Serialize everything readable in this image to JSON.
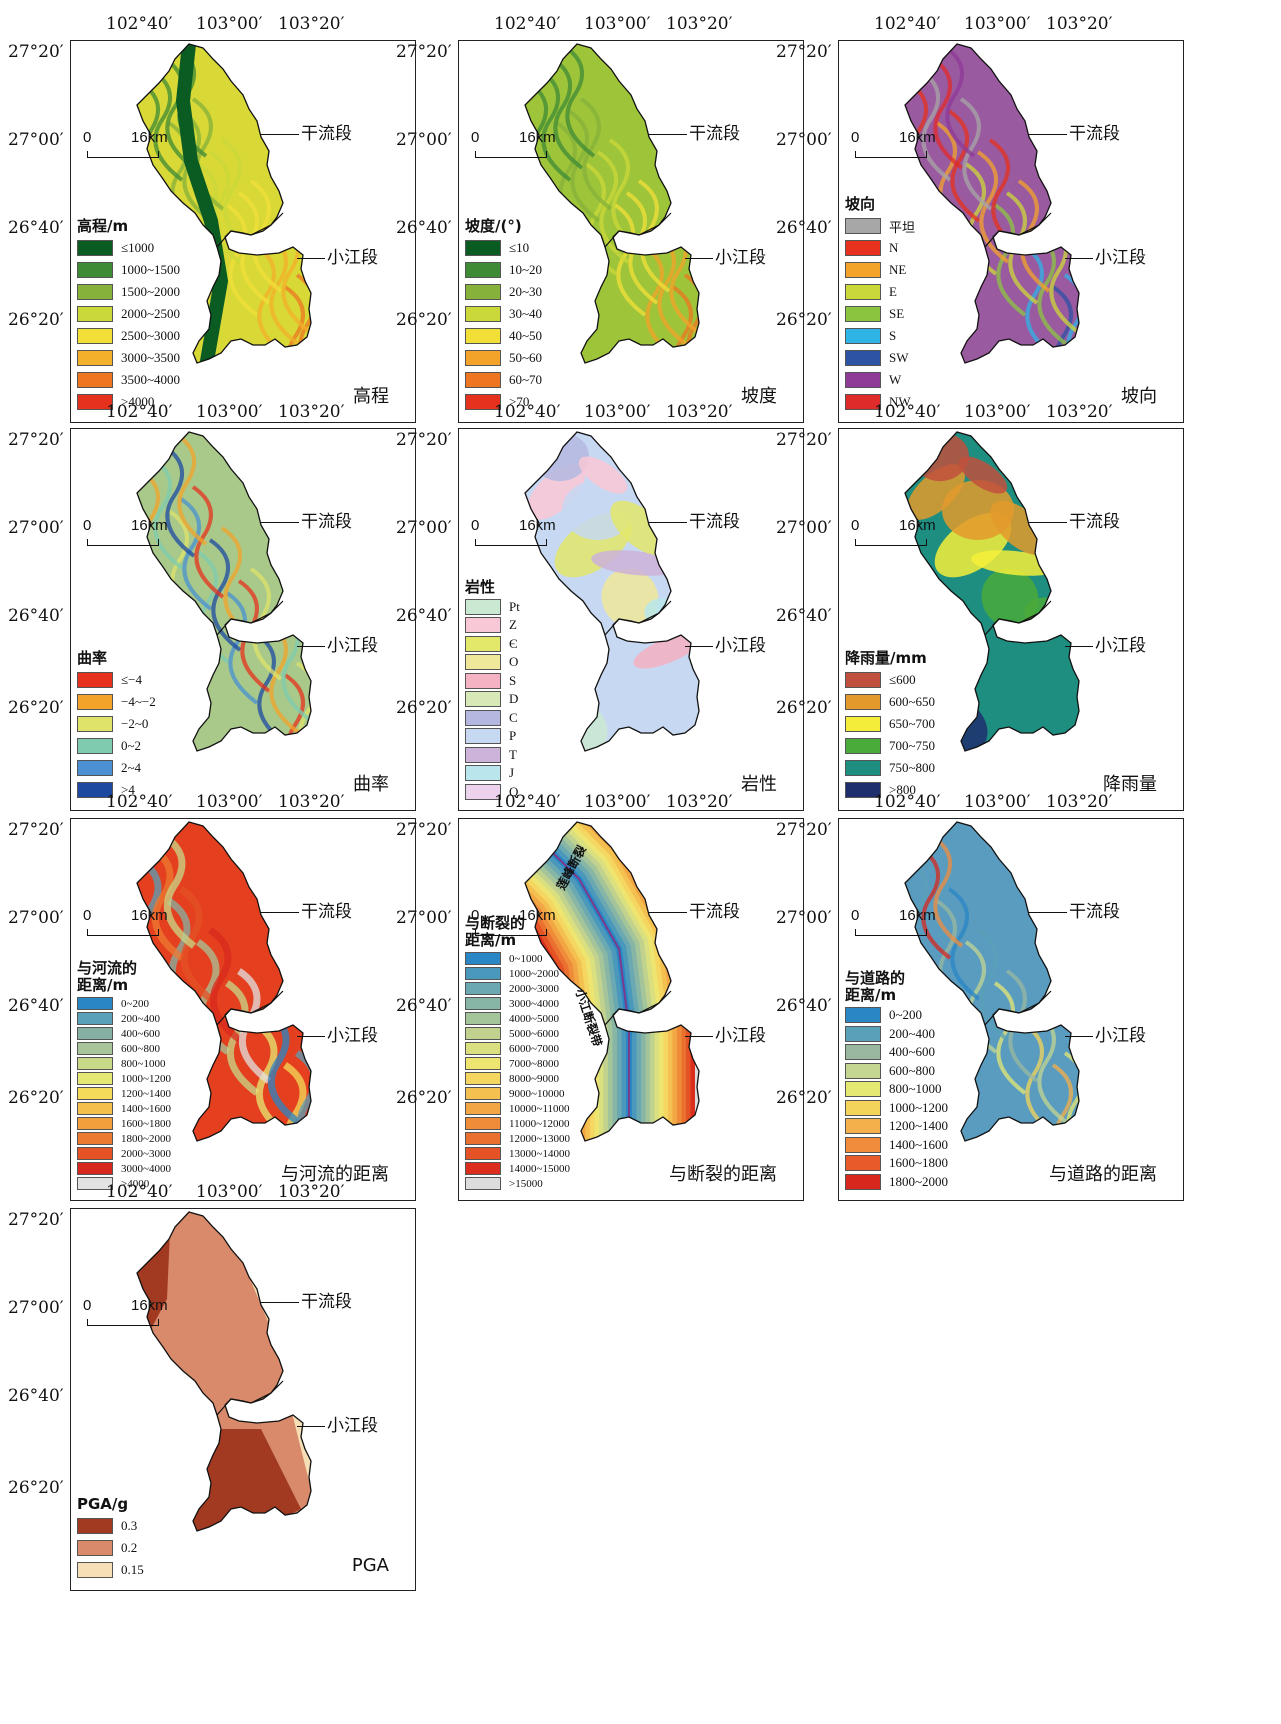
{
  "lon_labels": [
    "102°40′",
    "103°00′",
    "103°20′"
  ],
  "lat_labels": [
    "27°20′",
    "27°00′",
    "26°40′",
    "26°20′"
  ],
  "scale_bar": {
    "zero": "0",
    "distance": "16km"
  },
  "callouts": {
    "main": "干流段",
    "tributary": "小江段"
  },
  "panels": [
    {
      "id": "elevation",
      "title": "高程",
      "legend_title": "高程/m",
      "legend": [
        {
          "label": "≤1000",
          "color": "#0a5c22"
        },
        {
          "label": "1000~1500",
          "color": "#3d8b35"
        },
        {
          "label": "1500~2000",
          "color": "#86b13a"
        },
        {
          "label": "2000~2500",
          "color": "#cbd83a"
        },
        {
          "label": "2500~3000",
          "color": "#f2e039"
        },
        {
          "label": "3000~3500",
          "color": "#f3b02a"
        },
        {
          "label": "3500~4000",
          "color": "#ee7622"
        },
        {
          "label": ">4000",
          "color": "#e6311c"
        }
      ],
      "fill": "#d8d836",
      "stroke": "#1d6b2a"
    },
    {
      "id": "slope",
      "title": "坡度",
      "legend_title": "坡度/(°)",
      "legend": [
        {
          "label": "≤10",
          "color": "#0a5c22"
        },
        {
          "label": "10~20",
          "color": "#3d8b35"
        },
        {
          "label": "20~30",
          "color": "#86b13a"
        },
        {
          "label": "30~40",
          "color": "#cbd83a"
        },
        {
          "label": "40~50",
          "color": "#f2e039"
        },
        {
          "label": "50~60",
          "color": "#f3a32a"
        },
        {
          "label": "60~70",
          "color": "#ee7622"
        },
        {
          "label": ">70",
          "color": "#e6311c"
        }
      ],
      "fill": "#9ec43a",
      "stroke": "#6e9a2c"
    },
    {
      "id": "aspect",
      "title": "坡向",
      "legend_title": "坡向",
      "legend": [
        {
          "label": "平坦",
          "color": "#a7a7a7"
        },
        {
          "label": "N",
          "color": "#e6311c"
        },
        {
          "label": "NE",
          "color": "#f3a32a"
        },
        {
          "label": "E",
          "color": "#cbd83a"
        },
        {
          "label": "SE",
          "color": "#8bc540"
        },
        {
          "label": "S",
          "color": "#2fb4e6"
        },
        {
          "label": "SW",
          "color": "#2c53a4"
        },
        {
          "label": "W",
          "color": "#8e3a97"
        },
        {
          "label": "NW",
          "color": "#e02b2b"
        }
      ],
      "fill": "#9a5aa0",
      "stroke": "#c9b23a"
    },
    {
      "id": "curvature",
      "title": "曲率",
      "legend_title": "曲率",
      "legend": [
        {
          "label": "≤−4",
          "color": "#e6311c"
        },
        {
          "label": "−4~−2",
          "color": "#f3a32a"
        },
        {
          "label": "−2~0",
          "color": "#dfe36a"
        },
        {
          "label": "0~2",
          "color": "#7ecbb0"
        },
        {
          "label": "2~4",
          "color": "#4a90d2"
        },
        {
          "label": ">4",
          "color": "#1d4aa0"
        }
      ],
      "fill": "#a9c98a",
      "stroke": "#8a9a72"
    },
    {
      "id": "lithology",
      "title": "岩性",
      "legend_title": "岩性",
      "legend": [
        {
          "label": "Pt",
          "color": "#c9e9d2"
        },
        {
          "label": "Z",
          "color": "#f9c8d6"
        },
        {
          "label": "Є",
          "color": "#e3e76a"
        },
        {
          "label": "O",
          "color": "#efe89a"
        },
        {
          "label": "S",
          "color": "#f5b2c2"
        },
        {
          "label": "D",
          "color": "#d8e9b8"
        },
        {
          "label": "C",
          "color": "#b4b8e0"
        },
        {
          "label": "P",
          "color": "#c7d8f2"
        },
        {
          "label": "T",
          "color": "#cdb2d9"
        },
        {
          "label": "J",
          "color": "#b8e6ec"
        },
        {
          "label": "Q",
          "color": "#ecd2ec"
        }
      ],
      "fill": "#c7d8f2",
      "stroke": "#e3c7e6"
    },
    {
      "id": "rainfall",
      "title": "降雨量",
      "legend_title": "降雨量/mm",
      "legend": [
        {
          "label": "≤600",
          "color": "#c0503d"
        },
        {
          "label": "600~650",
          "color": "#e39a2b"
        },
        {
          "label": "650~700",
          "color": "#f4ee3a"
        },
        {
          "label": "700~750",
          "color": "#4aaa3a"
        },
        {
          "label": "750~800",
          "color": "#1d8e80"
        },
        {
          "label": ">800",
          "color": "#1f2f6e"
        }
      ],
      "fill": "#1d8e80",
      "stroke": "#4aaa3a"
    },
    {
      "id": "river",
      "title": "与河流的距离",
      "legend_title": "与河流的\n距离/m",
      "legend": [
        {
          "label": "0~200",
          "color": "#2a86c4"
        },
        {
          "label": "200~400",
          "color": "#5aa0b8"
        },
        {
          "label": "400~600",
          "color": "#86b0a4"
        },
        {
          "label": "600~800",
          "color": "#a7c49a"
        },
        {
          "label": "800~1000",
          "color": "#c7d888"
        },
        {
          "label": "1000~1200",
          "color": "#e6e874"
        },
        {
          "label": "1200~1400",
          "color": "#f4dc5a"
        },
        {
          "label": "1400~1600",
          "color": "#f4c04a"
        },
        {
          "label": "1600~1800",
          "color": "#f2a03c"
        },
        {
          "label": "1800~2000",
          "color": "#ec7a30"
        },
        {
          "label": "2000~3000",
          "color": "#e45226"
        },
        {
          "label": "3000~4000",
          "color": "#d8281e"
        },
        {
          "label": ">4000",
          "color": "#e2e2e2"
        }
      ],
      "fill": "#e4401f",
      "stroke": "#6aa8b8"
    },
    {
      "id": "fault",
      "title": "与断裂的距离",
      "legend_title": "与断裂的\n距离/m",
      "legend": [
        {
          "label": "0~1000",
          "color": "#2a86c4"
        },
        {
          "label": "1000~2000",
          "color": "#4a98bc"
        },
        {
          "label": "2000~3000",
          "color": "#6aa8b2"
        },
        {
          "label": "3000~4000",
          "color": "#88b6a6"
        },
        {
          "label": "4000~5000",
          "color": "#a4c49a"
        },
        {
          "label": "5000~6000",
          "color": "#c0d28e"
        },
        {
          "label": "6000~7000",
          "color": "#dadf80"
        },
        {
          "label": "7000~8000",
          "color": "#eee470"
        },
        {
          "label": "8000~9000",
          "color": "#f4d660"
        },
        {
          "label": "9000~10000",
          "color": "#f4c050"
        },
        {
          "label": "10000~11000",
          "color": "#f2a644"
        },
        {
          "label": "11000~12000",
          "color": "#ee8c3a"
        },
        {
          "label": "12000~13000",
          "color": "#ea7030"
        },
        {
          "label": "13000~14000",
          "color": "#e45226"
        },
        {
          "label": "14000~15000",
          "color": "#dc2e1e"
        },
        {
          "label": ">15000",
          "color": "#dcdcdc"
        }
      ],
      "fill": "#f2c04e",
      "stroke": "#e2e2e2",
      "fault_labels": [
        "莲峰断裂",
        "小江断裂带"
      ]
    },
    {
      "id": "road",
      "title": "与道路的距离",
      "legend_title": "与道路的\n距离/m",
      "legend": [
        {
          "label": "0~200",
          "color": "#2a86c4"
        },
        {
          "label": "200~400",
          "color": "#5aa0b8"
        },
        {
          "label": "400~600",
          "color": "#9ab8a0"
        },
        {
          "label": "600~800",
          "color": "#c4d690"
        },
        {
          "label": "800~1000",
          "color": "#e6e874"
        },
        {
          "label": "1000~1200",
          "color": "#f4d45a"
        },
        {
          "label": "1200~1400",
          "color": "#f4b04a"
        },
        {
          "label": "1400~1600",
          "color": "#f08c3c"
        },
        {
          "label": "1600~1800",
          "color": "#e85a2a"
        },
        {
          "label": "1800~2000",
          "color": "#d8281e"
        }
      ],
      "fill": "#5a9cc0",
      "stroke": "#9a9a9a"
    },
    {
      "id": "pga",
      "title": "PGA",
      "legend_title": "PGA/g",
      "legend": [
        {
          "label": "0.3",
          "color": "#a23a22"
        },
        {
          "label": "0.2",
          "color": "#d98a6a"
        },
        {
          "label": "0.15",
          "color": "#f6dfb6"
        }
      ],
      "fill": "#d98a6a",
      "stroke": "#111"
    }
  ]
}
